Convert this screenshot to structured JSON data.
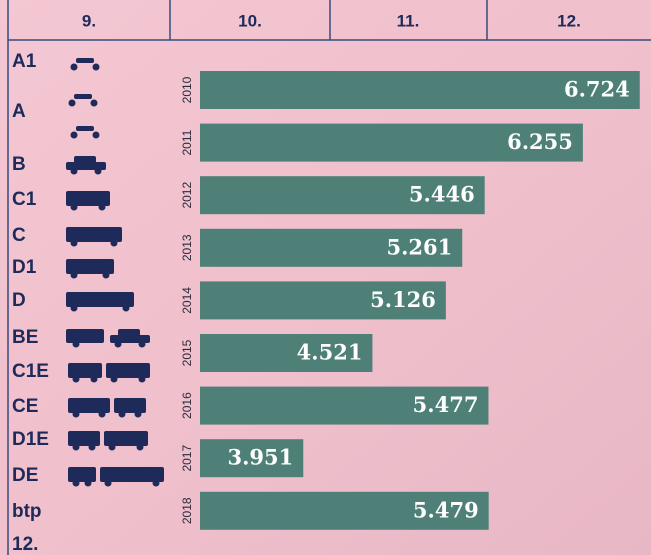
{
  "chart_data": {
    "type": "bar",
    "orientation": "horizontal",
    "categories": [
      "2010",
      "2011",
      "2012",
      "2013",
      "2014",
      "2015",
      "2016",
      "2017",
      "2018"
    ],
    "values": [
      6.724,
      6.255,
      5.446,
      5.261,
      5.126,
      4.521,
      5.477,
      3.951,
      5.479
    ],
    "color": "#4e8078",
    "xlim": [
      3.1,
      6.8
    ]
  },
  "license": {
    "headers": [
      "9.",
      "10.",
      "11.",
      "12."
    ],
    "rows": [
      "A1",
      "A",
      "B",
      "C1",
      "C",
      "D1",
      "D",
      "BE",
      "C1E",
      "CE",
      "D1E",
      "DE",
      "btp",
      "12."
    ]
  }
}
